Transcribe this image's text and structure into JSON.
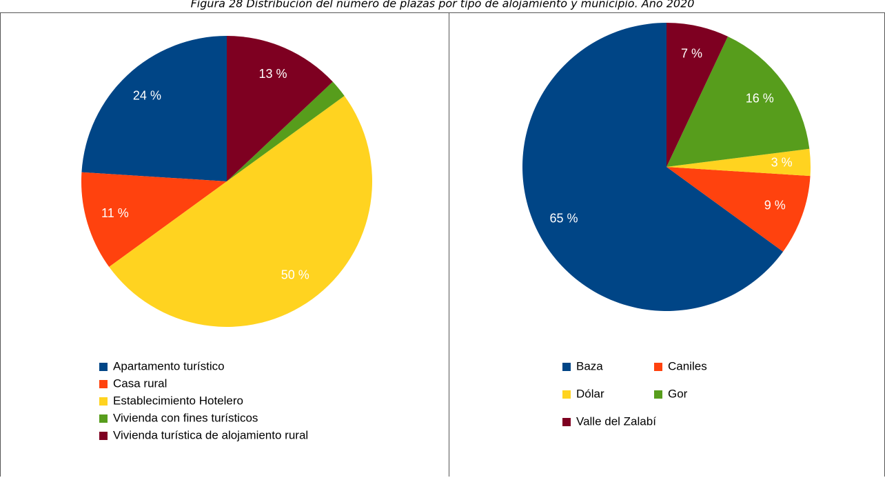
{
  "title": "Figura 28 Distribución del número de plazas por tipo de alojamiento y municipio. Año 2020",
  "chart_data": [
    {
      "type": "pie",
      "categories": [
        "Apartamento turístico",
        "Casa rural",
        "Establecimiento Hotelero",
        "Vivienda con fines turísticos",
        "Vivienda turística de alojamiento rural"
      ],
      "values": [
        24,
        11,
        50,
        2,
        13
      ],
      "value_labels": [
        "24 %",
        "11 %",
        "50 %",
        null,
        "13 %"
      ],
      "colors": [
        "#004586",
        "#ff420e",
        "#ffd320",
        "#579d1c",
        "#7e0021"
      ]
    },
    {
      "type": "pie",
      "categories": [
        "Baza",
        "Caniles",
        "Dólar",
        "Gor",
        "Valle del Zalabí"
      ],
      "values": [
        65,
        9,
        3,
        16,
        7
      ],
      "value_labels": [
        "65 %",
        "9 %",
        "3 %",
        "16 %",
        "7 %"
      ],
      "colors": [
        "#004586",
        "#ff420e",
        "#ffd320",
        "#579d1c",
        "#7e0021"
      ]
    }
  ]
}
